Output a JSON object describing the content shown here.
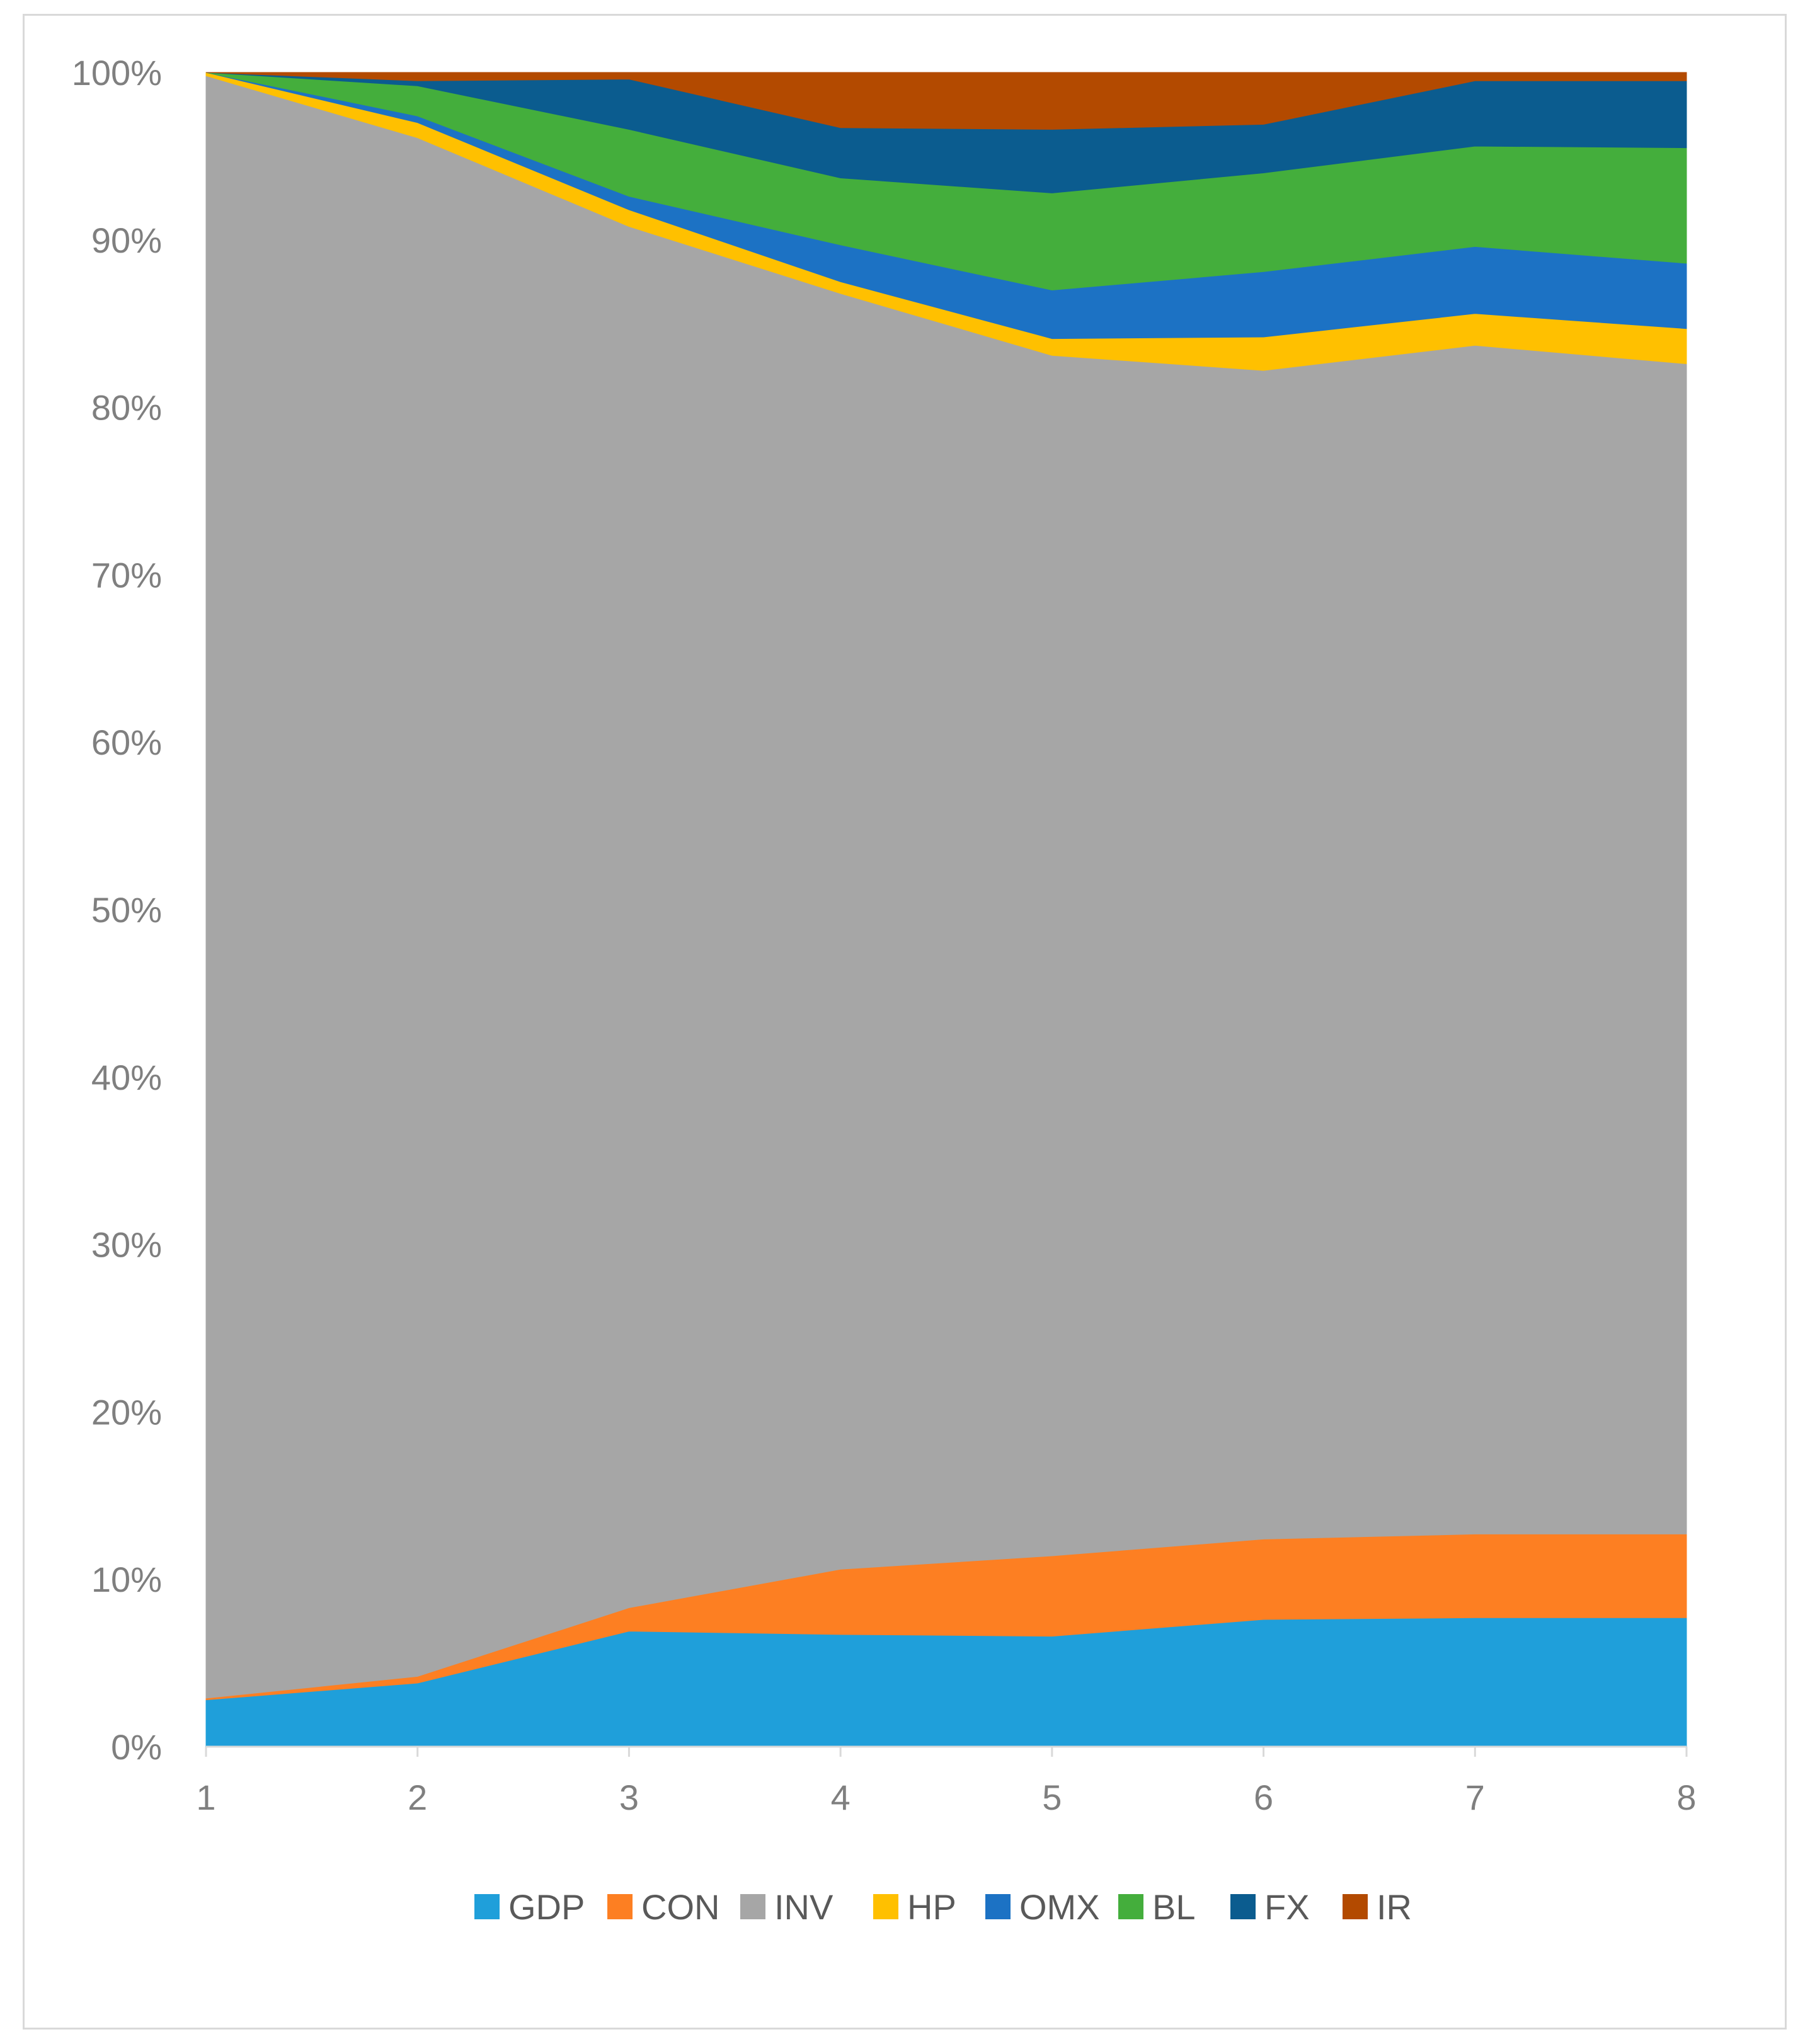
{
  "chart_data": {
    "type": "area",
    "stacked": true,
    "percent": true,
    "title": "",
    "xlabel": "",
    "ylabel": "",
    "x": [
      1,
      2,
      3,
      4,
      5,
      6,
      7,
      8
    ],
    "x_tick_labels": [
      "1",
      "2",
      "3",
      "4",
      "5",
      "6",
      "7",
      "8"
    ],
    "y_tick_labels": [
      "0%",
      "10%",
      "20%",
      "30%",
      "40%",
      "50%",
      "60%",
      "70%",
      "80%",
      "90%",
      "100%"
    ],
    "ylim": [
      0,
      100
    ],
    "grid": false,
    "legend_position": "bottom",
    "series": [
      {
        "name": "GDP",
        "color": "#1f9fda",
        "values": [
          2.8,
          3.8,
          6.9,
          6.7,
          6.6,
          7.6,
          7.7,
          7.7
        ]
      },
      {
        "name": "CON",
        "color": "#fd7f22",
        "values": [
          0.1,
          0.4,
          1.4,
          3.9,
          4.8,
          4.8,
          5.0,
          5.0
        ]
      },
      {
        "name": "INV",
        "color": "#a6a6a6",
        "values": [
          96.9,
          91.9,
          82.5,
          76.2,
          71.7,
          69.8,
          71.0,
          69.9
        ]
      },
      {
        "name": "HP",
        "color": "#ffc000",
        "values": [
          0.2,
          0.9,
          1.0,
          0.7,
          1.0,
          2.0,
          1.9,
          2.1
        ]
      },
      {
        "name": "OMX",
        "color": "#1c72c4",
        "values": [
          0.0,
          0.4,
          0.8,
          2.2,
          2.9,
          3.9,
          4.0,
          3.9
        ]
      },
      {
        "name": "BL",
        "color": "#44ae3c",
        "values": [
          0.0,
          1.8,
          4.0,
          4.0,
          5.8,
          5.9,
          6.0,
          6.9
        ]
      },
      {
        "name": "FX",
        "color": "#0b5c8f",
        "values": [
          0.0,
          0.3,
          3.0,
          3.0,
          3.8,
          2.9,
          3.9,
          4.0
        ]
      },
      {
        "name": "IR",
        "color": "#b34a00",
        "values": [
          0.0,
          0.5,
          0.4,
          3.3,
          3.4,
          3.1,
          0.5,
          0.5
        ]
      }
    ]
  }
}
